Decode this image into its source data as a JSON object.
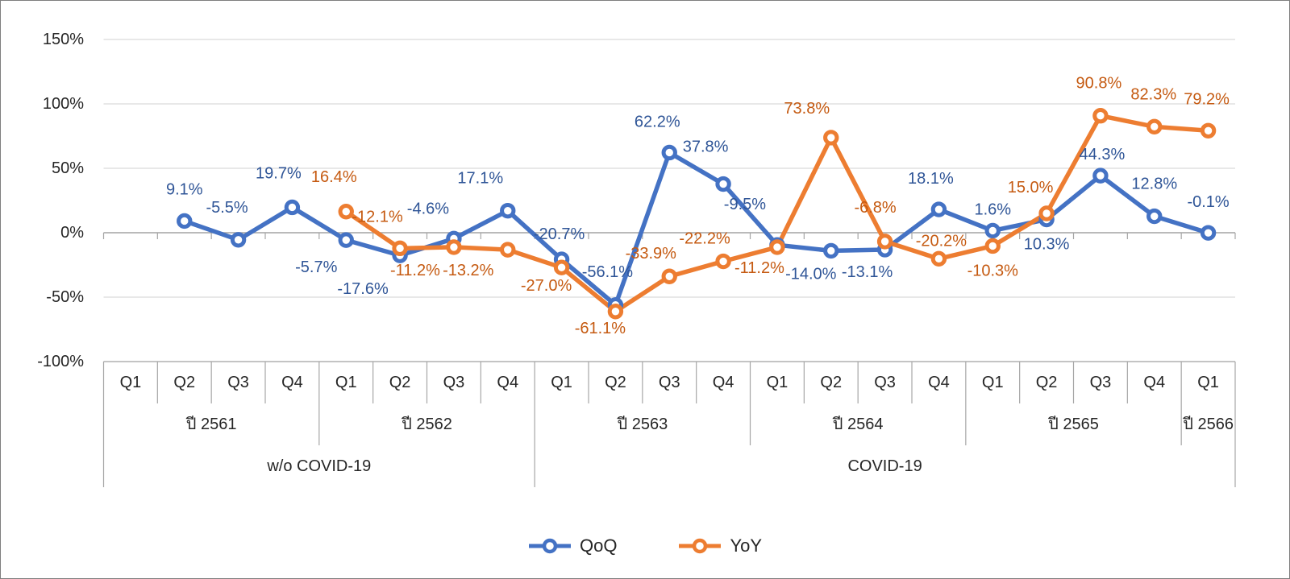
{
  "canvas": {
    "background_color": "#FFFFFF",
    "border_color": "#7F7F7F",
    "gridline_color": "#D9D9D9",
    "axis_line_color": "#A6A6A6",
    "axis_text_color": "#262626"
  },
  "chart_data": {
    "type": "line",
    "title": "",
    "x_axis": {
      "quarters": [
        "Q1",
        "Q2",
        "Q3",
        "Q4",
        "Q1",
        "Q2",
        "Q3",
        "Q4",
        "Q1",
        "Q2",
        "Q3",
        "Q4",
        "Q1",
        "Q2",
        "Q3",
        "Q4",
        "Q1",
        "Q2",
        "Q3",
        "Q4",
        "Q1"
      ],
      "years": [
        {
          "label": "ปี 2561",
          "span": 4
        },
        {
          "label": "ปี 2562",
          "span": 4
        },
        {
          "label": "ปี 2563",
          "span": 4
        },
        {
          "label": "ปี 2564",
          "span": 4
        },
        {
          "label": "ปี 2565",
          "span": 4
        },
        {
          "label": "ปี 2566",
          "span": 1
        }
      ],
      "groups": [
        {
          "label": "w/o COVID-19",
          "span": 8
        },
        {
          "label": "COVID-19",
          "span": 13
        }
      ]
    },
    "y_axis": {
      "tick_labels": [
        "150%",
        "100%",
        "50%",
        "0%",
        "-50%",
        "-100%"
      ],
      "tick_values": [
        150,
        100,
        50,
        0,
        -50,
        -100
      ],
      "ylim": [
        -100,
        150
      ],
      "grid": true
    },
    "series": [
      {
        "name": "QoQ",
        "line_color": "#4472C4",
        "label_color": "#2F5597",
        "values": [
          null,
          9.1,
          -5.5,
          19.7,
          -5.7,
          -17.6,
          -4.6,
          17.1,
          -20.7,
          -56.1,
          62.2,
          37.8,
          -9.5,
          -14.0,
          -13.1,
          18.1,
          1.6,
          10.3,
          44.3,
          12.8,
          -0.1
        ],
        "labels": [
          "",
          "9.1%",
          "-5.5%",
          "19.7%",
          "-5.7%",
          "-17.6%",
          "-4.6%",
          "17.1%",
          "-20.7%",
          "-56.1%",
          "62.2%",
          "37.8%",
          "-9.5%",
          "-14.0%",
          "-13.1%",
          "18.1%",
          "1.6%",
          "10.3%",
          "44.3%",
          "12.8%",
          "-0.1%"
        ],
        "label_offsets": [
          [
            0,
            0
          ],
          [
            0,
            -39
          ],
          [
            -14,
            -40
          ],
          [
            -17,
            -42
          ],
          [
            -37,
            34
          ],
          [
            -46,
            42
          ],
          [
            -32,
            -37
          ],
          [
            -34,
            -40
          ],
          [
            -3,
            -31
          ],
          [
            -10,
            -41
          ],
          [
            -15,
            -38
          ],
          [
            -22,
            -46
          ],
          [
            -40,
            -50
          ],
          [
            -25,
            29
          ],
          [
            -22,
            28
          ],
          [
            -10,
            -38
          ],
          [
            0,
            -26
          ],
          [
            0,
            31
          ],
          [
            2,
            -26
          ],
          [
            0,
            -40
          ],
          [
            0,
            -38
          ]
        ]
      },
      {
        "name": "YoY",
        "line_color": "#ED7D31",
        "label_color": "#C55A11",
        "values": [
          null,
          null,
          null,
          null,
          16.4,
          -12.1,
          -11.2,
          -13.2,
          -27.0,
          -61.1,
          -33.9,
          -22.2,
          -11.2,
          73.8,
          -6.8,
          -20.2,
          -10.3,
          15.0,
          90.8,
          82.3,
          79.2
        ],
        "labels": [
          "",
          "",
          "",
          "",
          "16.4%",
          "-12.1%",
          "-11.2%",
          "-13.2%",
          "-27.0%",
          "-61.1%",
          "-33.9%",
          "-22.2%",
          "-11.2%",
          "73.8%",
          "-6.8%",
          "-20.2%",
          "-10.3%",
          "15.0%",
          "90.8%",
          "82.3%",
          "79.2%"
        ],
        "label_offsets": [
          [
            0,
            0
          ],
          [
            0,
            0
          ],
          [
            0,
            0
          ],
          [
            0,
            0
          ],
          [
            -15,
            -43
          ],
          [
            -28,
            -39
          ],
          [
            -48,
            29
          ],
          [
            -49,
            26
          ],
          [
            -19,
            23
          ],
          [
            -19,
            21
          ],
          [
            -23,
            -28
          ],
          [
            -23,
            -28
          ],
          [
            -22,
            26
          ],
          [
            -30,
            -36
          ],
          [
            -12,
            -42
          ],
          [
            3,
            -22
          ],
          [
            0,
            31
          ],
          [
            -20,
            -32
          ],
          [
            -2,
            -40
          ],
          [
            -1,
            -40
          ],
          [
            -2,
            -39
          ]
        ]
      }
    ],
    "legend": {
      "position": "bottom",
      "items": [
        "QoQ",
        "YoY"
      ]
    }
  }
}
